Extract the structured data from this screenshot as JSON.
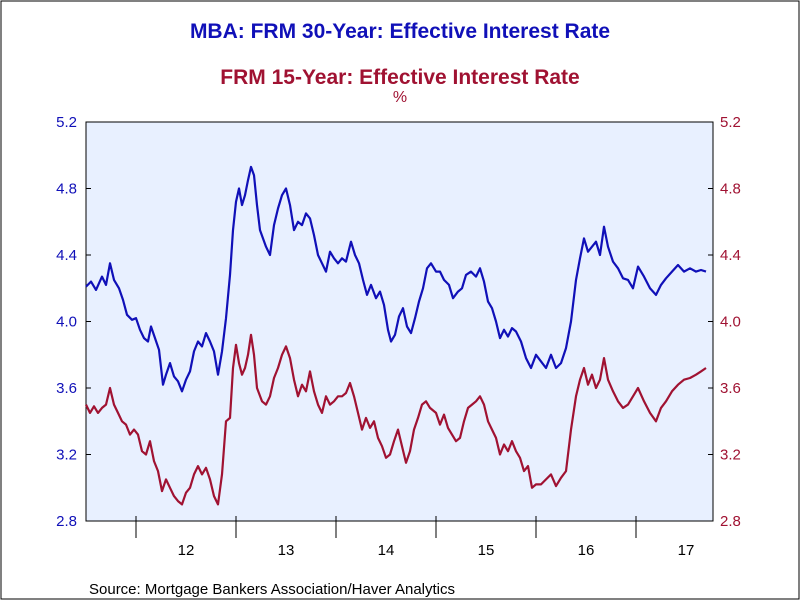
{
  "chart_data": {
    "type": "line",
    "title": "MBA: FRM 30-Year: Effective Interest Rate",
    "subtitle": "FRM 15-Year: Effective Interest Rate",
    "unit": "%",
    "source": "Source:  Mortgage Bankers Association/Haver Analytics",
    "ylim": [
      2.8,
      5.2
    ],
    "y_ticks": [
      2.8,
      3.2,
      3.6,
      4.0,
      4.4,
      4.8,
      5.2
    ],
    "y_tick_labels": [
      "2.8",
      "3.2",
      "3.6",
      "4.0",
      "4.4",
      "4.8",
      "5.2"
    ],
    "x_labels": [
      "12",
      "13",
      "14",
      "15",
      "16",
      "17"
    ],
    "x_range": [
      2011.5,
      2017.77
    ],
    "grid": false,
    "series": [
      {
        "name": "MBA: FRM 30-Year: Effective Interest Rate",
        "color": "#1010b8",
        "axis": "left",
        "points": [
          [
            2011.5,
            4.21
          ],
          [
            2011.55,
            4.24
          ],
          [
            2011.6,
            4.19
          ],
          [
            2011.66,
            4.27
          ],
          [
            2011.7,
            4.22
          ],
          [
            2011.74,
            4.35
          ],
          [
            2011.78,
            4.25
          ],
          [
            2011.83,
            4.2
          ],
          [
            2011.87,
            4.13
          ],
          [
            2011.91,
            4.04
          ],
          [
            2011.96,
            4.01
          ],
          [
            2012.0,
            4.02
          ],
          [
            2012.04,
            3.95
          ],
          [
            2012.08,
            3.9
          ],
          [
            2012.12,
            3.88
          ],
          [
            2012.15,
            3.97
          ],
          [
            2012.19,
            3.9
          ],
          [
            2012.23,
            3.83
          ],
          [
            2012.27,
            3.62
          ],
          [
            2012.3,
            3.68
          ],
          [
            2012.34,
            3.75
          ],
          [
            2012.38,
            3.67
          ],
          [
            2012.42,
            3.64
          ],
          [
            2012.46,
            3.58
          ],
          [
            2012.5,
            3.65
          ],
          [
            2012.54,
            3.7
          ],
          [
            2012.58,
            3.82
          ],
          [
            2012.62,
            3.88
          ],
          [
            2012.66,
            3.85
          ],
          [
            2012.7,
            3.93
          ],
          [
            2012.74,
            3.88
          ],
          [
            2012.78,
            3.82
          ],
          [
            2012.82,
            3.68
          ],
          [
            2012.86,
            3.82
          ],
          [
            2012.9,
            4.02
          ],
          [
            2012.94,
            4.28
          ],
          [
            2012.97,
            4.55
          ],
          [
            2013.0,
            4.72
          ],
          [
            2013.03,
            4.8
          ],
          [
            2013.06,
            4.7
          ],
          [
            2013.09,
            4.76
          ],
          [
            2013.12,
            4.85
          ],
          [
            2013.15,
            4.93
          ],
          [
            2013.18,
            4.88
          ],
          [
            2013.21,
            4.7
          ],
          [
            2013.24,
            4.55
          ],
          [
            2013.3,
            4.45
          ],
          [
            2013.34,
            4.4
          ],
          [
            2013.38,
            4.58
          ],
          [
            2013.42,
            4.68
          ],
          [
            2013.46,
            4.76
          ],
          [
            2013.5,
            4.8
          ],
          [
            2013.54,
            4.7
          ],
          [
            2013.58,
            4.55
          ],
          [
            2013.62,
            4.6
          ],
          [
            2013.66,
            4.58
          ],
          [
            2013.7,
            4.65
          ],
          [
            2013.74,
            4.62
          ],
          [
            2013.78,
            4.52
          ],
          [
            2013.82,
            4.4
          ],
          [
            2013.86,
            4.35
          ],
          [
            2013.9,
            4.3
          ],
          [
            2013.94,
            4.42
          ],
          [
            2013.98,
            4.38
          ],
          [
            2014.02,
            4.35
          ],
          [
            2014.06,
            4.38
          ],
          [
            2014.1,
            4.36
          ],
          [
            2014.15,
            4.48
          ],
          [
            2014.19,
            4.4
          ],
          [
            2014.23,
            4.35
          ],
          [
            2014.27,
            4.25
          ],
          [
            2014.31,
            4.16
          ],
          [
            2014.35,
            4.22
          ],
          [
            2014.4,
            4.14
          ],
          [
            2014.44,
            4.18
          ],
          [
            2014.48,
            4.1
          ],
          [
            2014.52,
            3.95
          ],
          [
            2014.55,
            3.88
          ],
          [
            2014.59,
            3.92
          ],
          [
            2014.63,
            4.03
          ],
          [
            2014.67,
            4.08
          ],
          [
            2014.71,
            3.97
          ],
          [
            2014.75,
            3.93
          ],
          [
            2014.79,
            4.02
          ],
          [
            2014.83,
            4.12
          ],
          [
            2014.87,
            4.2
          ],
          [
            2014.91,
            4.32
          ],
          [
            2014.95,
            4.35
          ],
          [
            2015.0,
            4.3
          ],
          [
            2015.04,
            4.3
          ],
          [
            2015.08,
            4.25
          ],
          [
            2015.13,
            4.22
          ],
          [
            2015.17,
            4.14
          ],
          [
            2015.22,
            4.18
          ],
          [
            2015.26,
            4.2
          ],
          [
            2015.3,
            4.28
          ],
          [
            2015.35,
            4.3
          ],
          [
            2015.4,
            4.27
          ],
          [
            2015.44,
            4.32
          ],
          [
            2015.48,
            4.24
          ],
          [
            2015.52,
            4.12
          ],
          [
            2015.56,
            4.08
          ],
          [
            2015.6,
            4.0
          ],
          [
            2015.64,
            3.9
          ],
          [
            2015.68,
            3.95
          ],
          [
            2015.72,
            3.91
          ],
          [
            2015.76,
            3.96
          ],
          [
            2015.8,
            3.94
          ],
          [
            2015.85,
            3.88
          ],
          [
            2015.9,
            3.78
          ],
          [
            2015.95,
            3.72
          ],
          [
            2016.0,
            3.8
          ],
          [
            2016.05,
            3.76
          ],
          [
            2016.1,
            3.72
          ],
          [
            2016.15,
            3.8
          ],
          [
            2016.2,
            3.72
          ],
          [
            2016.25,
            3.75
          ],
          [
            2016.3,
            3.84
          ],
          [
            2016.35,
            4.0
          ],
          [
            2016.4,
            4.25
          ],
          [
            2016.44,
            4.38
          ],
          [
            2016.48,
            4.5
          ],
          [
            2016.52,
            4.42
          ],
          [
            2016.56,
            4.45
          ],
          [
            2016.6,
            4.48
          ],
          [
            2016.64,
            4.4
          ],
          [
            2016.68,
            4.57
          ],
          [
            2016.72,
            4.45
          ],
          [
            2016.77,
            4.36
          ],
          [
            2016.82,
            4.32
          ],
          [
            2016.87,
            4.26
          ],
          [
            2016.92,
            4.25
          ],
          [
            2016.97,
            4.2
          ],
          [
            2017.02,
            4.33
          ],
          [
            2017.08,
            4.27
          ],
          [
            2017.14,
            4.2
          ],
          [
            2017.2,
            4.16
          ],
          [
            2017.25,
            4.22
          ],
          [
            2017.3,
            4.26
          ],
          [
            2017.36,
            4.3
          ],
          [
            2017.42,
            4.34
          ],
          [
            2017.48,
            4.3
          ],
          [
            2017.54,
            4.32
          ],
          [
            2017.6,
            4.3
          ],
          [
            2017.65,
            4.31
          ],
          [
            2017.7,
            4.3
          ]
        ]
      },
      {
        "name": "FRM 15-Year: Effective Interest Rate",
        "color": "#a01232",
        "axis": "right",
        "points": [
          [
            2011.5,
            3.5
          ],
          [
            2011.54,
            3.45
          ],
          [
            2011.58,
            3.49
          ],
          [
            2011.62,
            3.45
          ],
          [
            2011.66,
            3.48
          ],
          [
            2011.7,
            3.5
          ],
          [
            2011.74,
            3.6
          ],
          [
            2011.78,
            3.5
          ],
          [
            2011.82,
            3.45
          ],
          [
            2011.86,
            3.4
          ],
          [
            2011.9,
            3.38
          ],
          [
            2011.94,
            3.32
          ],
          [
            2011.98,
            3.35
          ],
          [
            2012.02,
            3.32
          ],
          [
            2012.06,
            3.22
          ],
          [
            2012.1,
            3.2
          ],
          [
            2012.14,
            3.28
          ],
          [
            2012.18,
            3.16
          ],
          [
            2012.22,
            3.1
          ],
          [
            2012.26,
            2.98
          ],
          [
            2012.3,
            3.05
          ],
          [
            2012.34,
            3.0
          ],
          [
            2012.38,
            2.95
          ],
          [
            2012.42,
            2.92
          ],
          [
            2012.46,
            2.9
          ],
          [
            2012.5,
            2.97
          ],
          [
            2012.54,
            3.0
          ],
          [
            2012.58,
            3.08
          ],
          [
            2012.62,
            3.13
          ],
          [
            2012.66,
            3.08
          ],
          [
            2012.7,
            3.12
          ],
          [
            2012.74,
            3.05
          ],
          [
            2012.78,
            2.95
          ],
          [
            2012.82,
            2.9
          ],
          [
            2012.86,
            3.08
          ],
          [
            2012.9,
            3.4
          ],
          [
            2012.94,
            3.42
          ],
          [
            2012.97,
            3.72
          ],
          [
            2013.0,
            3.86
          ],
          [
            2013.03,
            3.75
          ],
          [
            2013.06,
            3.68
          ],
          [
            2013.09,
            3.72
          ],
          [
            2013.12,
            3.8
          ],
          [
            2013.15,
            3.92
          ],
          [
            2013.18,
            3.8
          ],
          [
            2013.21,
            3.6
          ],
          [
            2013.26,
            3.52
          ],
          [
            2013.3,
            3.5
          ],
          [
            2013.34,
            3.55
          ],
          [
            2013.38,
            3.66
          ],
          [
            2013.42,
            3.72
          ],
          [
            2013.46,
            3.8
          ],
          [
            2013.5,
            3.85
          ],
          [
            2013.54,
            3.78
          ],
          [
            2013.58,
            3.65
          ],
          [
            2013.62,
            3.55
          ],
          [
            2013.66,
            3.62
          ],
          [
            2013.7,
            3.58
          ],
          [
            2013.74,
            3.7
          ],
          [
            2013.78,
            3.58
          ],
          [
            2013.82,
            3.5
          ],
          [
            2013.86,
            3.45
          ],
          [
            2013.9,
            3.55
          ],
          [
            2013.94,
            3.5
          ],
          [
            2013.98,
            3.52
          ],
          [
            2014.02,
            3.55
          ],
          [
            2014.06,
            3.55
          ],
          [
            2014.1,
            3.57
          ],
          [
            2014.14,
            3.63
          ],
          [
            2014.18,
            3.55
          ],
          [
            2014.22,
            3.45
          ],
          [
            2014.26,
            3.35
          ],
          [
            2014.3,
            3.42
          ],
          [
            2014.34,
            3.36
          ],
          [
            2014.38,
            3.4
          ],
          [
            2014.42,
            3.3
          ],
          [
            2014.46,
            3.25
          ],
          [
            2014.5,
            3.18
          ],
          [
            2014.54,
            3.2
          ],
          [
            2014.58,
            3.28
          ],
          [
            2014.62,
            3.35
          ],
          [
            2014.66,
            3.25
          ],
          [
            2014.7,
            3.15
          ],
          [
            2014.74,
            3.22
          ],
          [
            2014.78,
            3.35
          ],
          [
            2014.82,
            3.42
          ],
          [
            2014.86,
            3.5
          ],
          [
            2014.9,
            3.52
          ],
          [
            2014.94,
            3.48
          ],
          [
            2015.0,
            3.45
          ],
          [
            2015.04,
            3.38
          ],
          [
            2015.08,
            3.44
          ],
          [
            2015.12,
            3.36
          ],
          [
            2015.16,
            3.32
          ],
          [
            2015.2,
            3.28
          ],
          [
            2015.24,
            3.3
          ],
          [
            2015.28,
            3.4
          ],
          [
            2015.32,
            3.48
          ],
          [
            2015.36,
            3.5
          ],
          [
            2015.4,
            3.52
          ],
          [
            2015.44,
            3.55
          ],
          [
            2015.48,
            3.5
          ],
          [
            2015.52,
            3.4
          ],
          [
            2015.56,
            3.35
          ],
          [
            2015.6,
            3.3
          ],
          [
            2015.64,
            3.2
          ],
          [
            2015.68,
            3.26
          ],
          [
            2015.72,
            3.22
          ],
          [
            2015.76,
            3.28
          ],
          [
            2015.8,
            3.22
          ],
          [
            2015.84,
            3.18
          ],
          [
            2015.88,
            3.1
          ],
          [
            2015.92,
            3.13
          ],
          [
            2015.96,
            3.0
          ],
          [
            2016.0,
            3.02
          ],
          [
            2016.05,
            3.02
          ],
          [
            2016.1,
            3.05
          ],
          [
            2016.15,
            3.08
          ],
          [
            2016.2,
            3.01
          ],
          [
            2016.25,
            3.06
          ],
          [
            2016.3,
            3.1
          ],
          [
            2016.35,
            3.35
          ],
          [
            2016.4,
            3.55
          ],
          [
            2016.44,
            3.65
          ],
          [
            2016.48,
            3.72
          ],
          [
            2016.52,
            3.62
          ],
          [
            2016.56,
            3.68
          ],
          [
            2016.6,
            3.6
          ],
          [
            2016.64,
            3.65
          ],
          [
            2016.68,
            3.78
          ],
          [
            2016.72,
            3.65
          ],
          [
            2016.77,
            3.58
          ],
          [
            2016.82,
            3.52
          ],
          [
            2016.87,
            3.48
          ],
          [
            2016.92,
            3.5
          ],
          [
            2016.97,
            3.55
          ],
          [
            2017.02,
            3.6
          ],
          [
            2017.08,
            3.52
          ],
          [
            2017.14,
            3.45
          ],
          [
            2017.2,
            3.4
          ],
          [
            2017.25,
            3.48
          ],
          [
            2017.3,
            3.52
          ],
          [
            2017.36,
            3.58
          ],
          [
            2017.42,
            3.62
          ],
          [
            2017.48,
            3.65
          ],
          [
            2017.54,
            3.66
          ],
          [
            2017.6,
            3.68
          ],
          [
            2017.65,
            3.7
          ],
          [
            2017.7,
            3.72
          ]
        ]
      }
    ]
  }
}
